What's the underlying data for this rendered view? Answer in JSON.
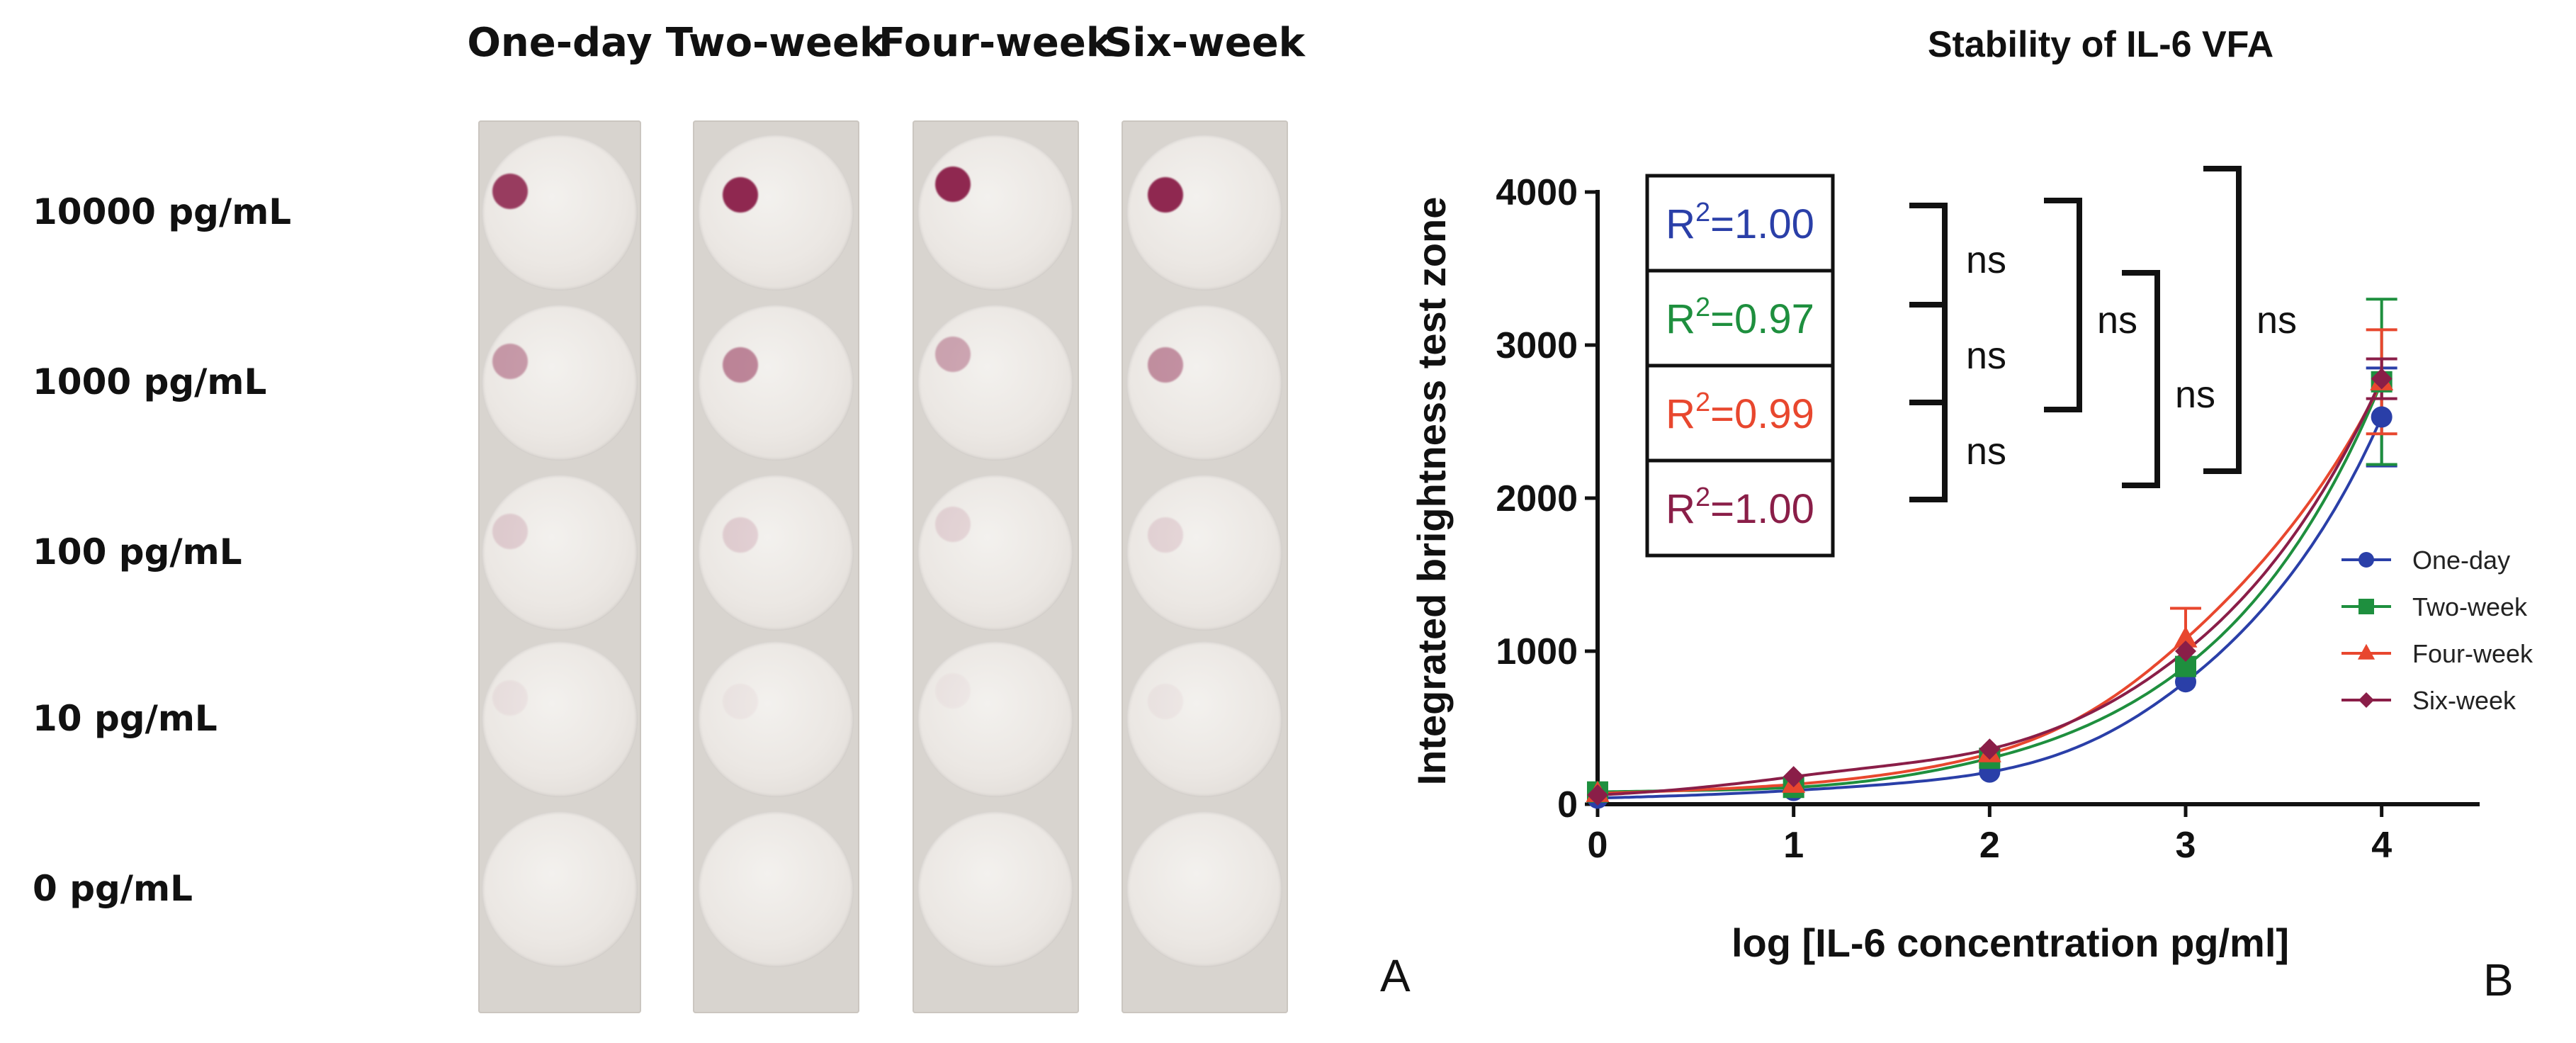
{
  "panel_a": {
    "columns": [
      "One-day",
      "Two-week",
      "Four-week",
      "Six-week"
    ],
    "rows": [
      "10000 pg/mL",
      "1000 pg/mL",
      "100 pg/mL",
      "10 pg/mL",
      "0 pg/mL"
    ],
    "label": "A",
    "spot_color": "#8a1e48",
    "spot_intensity": [
      [
        0.85,
        0.95,
        0.95,
        0.95
      ],
      [
        0.4,
        0.5,
        0.35,
        0.45
      ],
      [
        0.15,
        0.15,
        0.12,
        0.12
      ],
      [
        0.05,
        0.04,
        0.03,
        0.04
      ],
      [
        0.0,
        0.0,
        0.0,
        0.0
      ]
    ]
  },
  "panel_b": {
    "label": "B"
  },
  "chart_data": {
    "type": "line",
    "title": "Stability of IL-6 VFA",
    "xlabel": "log [IL-6 concentration pg/ml]",
    "ylabel": "Integrated brightness test zone",
    "xlim": [
      0,
      4.5
    ],
    "ylim": [
      0,
      4000
    ],
    "xticks": [
      "0",
      "1",
      "2",
      "3",
      "4"
    ],
    "yticks": [
      "0",
      "1000",
      "2000",
      "3000",
      "4000"
    ],
    "x": [
      0,
      1,
      2,
      3,
      4
    ],
    "series": [
      {
        "name": "One-day",
        "color": "#2a3fa8",
        "marker": "circle",
        "values": [
          40,
          90,
          210,
          800,
          2530
        ],
        "error_4": 320
      },
      {
        "name": "Two-week",
        "color": "#1e8f3e",
        "marker": "square",
        "values": [
          80,
          110,
          300,
          900,
          2760
        ],
        "error_4": 540
      },
      {
        "name": "Four-week",
        "color": "#e8472e",
        "marker": "triangle",
        "values": [
          70,
          130,
          330,
          1080,
          2760
        ],
        "error_4": 340
      },
      {
        "name": "Six-week",
        "color": "#8a1e48",
        "marker": "diamond",
        "values": [
          60,
          180,
          360,
          1000,
          2780
        ],
        "error_4": 130
      }
    ],
    "r2_labels": [
      {
        "prefix": "R",
        "sup": "2",
        "value": "=1.00",
        "color": "#2a3fa8"
      },
      {
        "prefix": "R",
        "sup": "2",
        "value": "=0.97",
        "color": "#1e8f3e"
      },
      {
        "prefix": "R",
        "sup": "2",
        "value": "=0.99",
        "color": "#e8472e"
      },
      {
        "prefix": "R",
        "sup": "2",
        "value": "=1.00",
        "color": "#8a1e48"
      }
    ],
    "significance": [
      "ns",
      "ns",
      "ns",
      "ns",
      "ns",
      "ns"
    ],
    "legend_position": "bottom-right"
  }
}
